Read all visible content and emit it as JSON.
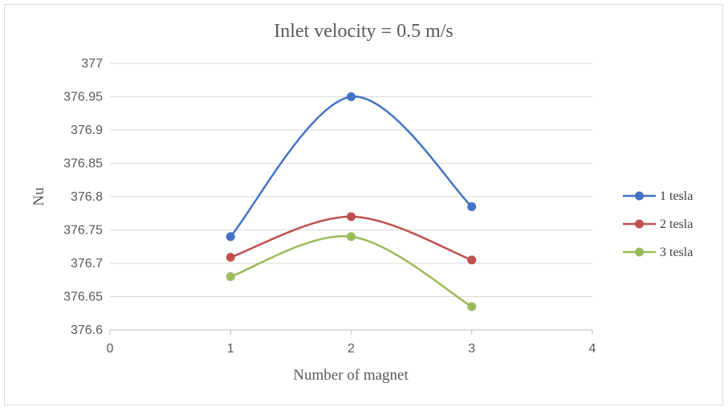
{
  "chart_data": {
    "type": "line",
    "title": "Inlet velocity = 0.5 m/s",
    "xlabel": "Number of magnet",
    "ylabel": "Nu",
    "xlim": [
      0,
      4
    ],
    "ylim": [
      376.6,
      377
    ],
    "x_ticks": [
      "0",
      "1",
      "2",
      "3",
      "4"
    ],
    "y_ticks": [
      "376.6",
      "376.65",
      "376.7",
      "376.75",
      "376.8",
      "376.85",
      "376.9",
      "376.95",
      "377"
    ],
    "x": [
      1,
      2,
      3
    ],
    "grid": true,
    "smooth": true,
    "legend_position": "right",
    "series": [
      {
        "name": "1 tesla",
        "color": "#4472c4",
        "values": [
          376.74,
          376.95,
          376.785
        ]
      },
      {
        "name": "2 tesla",
        "color": "#c0504d",
        "values": [
          376.709,
          376.77,
          376.705
        ]
      },
      {
        "name": "3 tesla",
        "color": "#9bbb59",
        "values": [
          376.68,
          376.74,
          376.635
        ]
      }
    ]
  }
}
